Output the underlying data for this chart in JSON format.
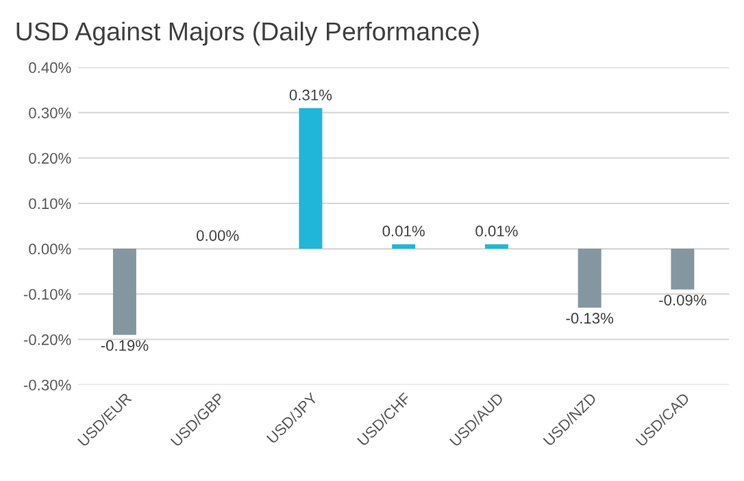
{
  "chart_data": {
    "type": "bar",
    "title": "USD Against Majors (Daily Performance)",
    "categories": [
      "USD/EUR",
      "USD/GBP",
      "USD/JPY",
      "USD/CHF",
      "USD/AUD",
      "USD/NZD",
      "USD/CAD"
    ],
    "values": [
      -0.19,
      0.0,
      0.31,
      0.01,
      0.01,
      -0.13,
      -0.09
    ],
    "colors": [
      "#8497a0",
      "#1fb6d9",
      "#1fb6d9",
      "#1fb6d9",
      "#1fb6d9",
      "#8497a0",
      "#8497a0"
    ],
    "value_labels": [
      "-0.19%",
      "0.00%",
      "0.31%",
      "0.01%",
      "0.01%",
      "-0.13%",
      "-0.09%"
    ],
    "ylim": [
      -0.3,
      0.4
    ],
    "yticks": [
      {
        "value": -0.3,
        "label": "-0.30%"
      },
      {
        "value": -0.2,
        "label": "-0.20%"
      },
      {
        "value": -0.1,
        "label": "-0.10%"
      },
      {
        "value": 0.0,
        "label": "0.00%"
      },
      {
        "value": 0.1,
        "label": "0.10%"
      },
      {
        "value": 0.2,
        "label": "0.20%"
      },
      {
        "value": 0.3,
        "label": "0.30%"
      },
      {
        "value": 0.4,
        "label": "0.40%"
      }
    ],
    "grid": "y",
    "legend": false
  }
}
